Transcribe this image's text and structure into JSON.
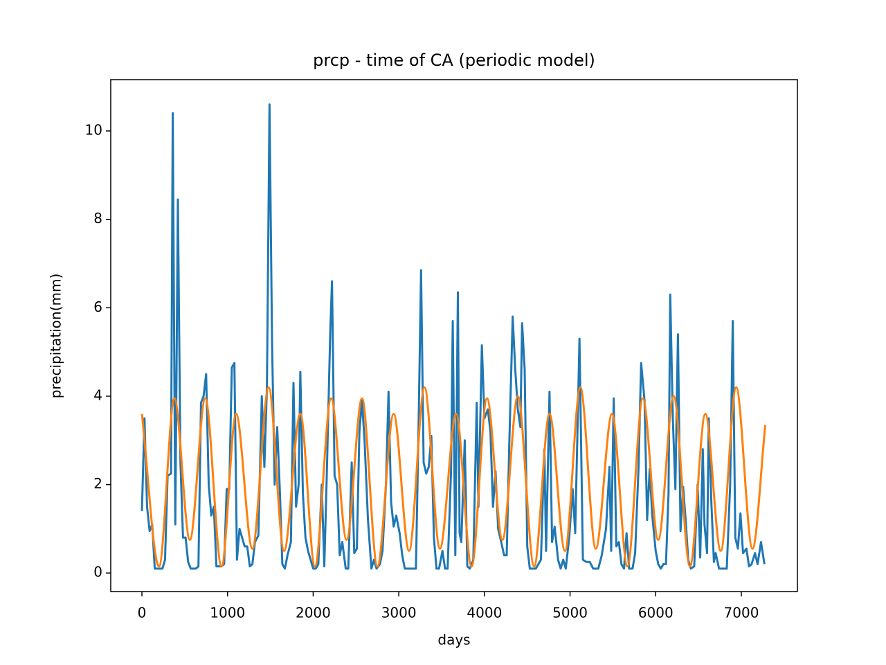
{
  "chart_data": {
    "type": "line",
    "title": "prcp - time of CA (periodic model)",
    "x_label": "days",
    "y_label": "precipitation(mm)",
    "xlim": [
      -364,
      7655
    ],
    "ylim": [
      -0.42,
      11.16
    ],
    "xticks": [
      0,
      1000,
      2000,
      3000,
      4000,
      5000,
      6000,
      7000
    ],
    "yticks": [
      0,
      2,
      4,
      6,
      8,
      10
    ],
    "grid": false,
    "series": [
      {
        "color": "#1f77b4",
        "smooth": false,
        "x": [
          0,
          30,
          60,
          90,
          120,
          150,
          180,
          240,
          270,
          300,
          340,
          360,
          390,
          420,
          450,
          480,
          510,
          540,
          570,
          630,
          660,
          690,
          720,
          750,
          780,
          810,
          840,
          870,
          900,
          930,
          960,
          990,
          1020,
          1050,
          1080,
          1110,
          1140,
          1170,
          1200,
          1230,
          1260,
          1290,
          1320,
          1360,
          1400,
          1430,
          1460,
          1490,
          1520,
          1550,
          1580,
          1610,
          1640,
          1670,
          1700,
          1740,
          1770,
          1800,
          1830,
          1850,
          1880,
          1910,
          1940,
          1970,
          2000,
          2030,
          2060,
          2100,
          2130,
          2160,
          2200,
          2220,
          2250,
          2280,
          2310,
          2340,
          2380,
          2410,
          2450,
          2480,
          2510,
          2540,
          2570,
          2600,
          2640,
          2680,
          2710,
          2740,
          2780,
          2810,
          2850,
          2880,
          2910,
          2940,
          2970,
          3010,
          3040,
          3070,
          3100,
          3150,
          3200,
          3230,
          3260,
          3290,
          3320,
          3350,
          3380,
          3410,
          3440,
          3470,
          3510,
          3540,
          3570,
          3610,
          3630,
          3660,
          3690,
          3710,
          3730,
          3770,
          3800,
          3830,
          3870,
          3910,
          3930,
          3970,
          4000,
          4040,
          4070,
          4100,
          4130,
          4160,
          4190,
          4230,
          4260,
          4290,
          4330,
          4360,
          4390,
          4420,
          4440,
          4470,
          4500,
          4530,
          4600,
          4660,
          4700,
          4720,
          4760,
          4790,
          4820,
          4860,
          4890,
          4920,
          4950,
          4990,
          5030,
          5060,
          5090,
          5110,
          5150,
          5190,
          5230,
          5270,
          5330,
          5370,
          5420,
          5460,
          5480,
          5510,
          5540,
          5570,
          5600,
          5630,
          5660,
          5690,
          5730,
          5760,
          5800,
          5830,
          5870,
          5900,
          5930,
          5960,
          6000,
          6030,
          6060,
          6090,
          6120,
          6150,
          6170,
          6200,
          6230,
          6260,
          6290,
          6320,
          6350,
          6380,
          6410,
          6450,
          6490,
          6520,
          6550,
          6570,
          6600,
          6620,
          6650,
          6680,
          6700,
          6740,
          6790,
          6830,
          6870,
          6900,
          6930,
          6960,
          6990,
          7020,
          7060,
          7090,
          7120,
          7160,
          7190,
          7230,
          7270
        ],
        "values": [
          1.4,
          3.5,
          1.5,
          0.95,
          1.1,
          0.1,
          0.1,
          0.1,
          0.3,
          2.2,
          2.25,
          10.4,
          1.1,
          8.45,
          2.5,
          0.8,
          0.8,
          0.25,
          0.1,
          0.1,
          0.15,
          3.85,
          4.0,
          4.5,
          2.0,
          1.3,
          1.5,
          0.15,
          0.15,
          0.15,
          0.2,
          1.9,
          1.9,
          4.65,
          4.75,
          0.3,
          1.0,
          0.8,
          0.6,
          0.6,
          0.15,
          0.2,
          0.7,
          0.85,
          4.0,
          2.4,
          4.2,
          10.6,
          5.2,
          2.0,
          3.3,
          1.9,
          0.2,
          0.1,
          0.4,
          0.7,
          4.3,
          1.5,
          2.0,
          4.55,
          1.8,
          0.8,
          0.5,
          0.3,
          0.1,
          0.1,
          0.2,
          2.0,
          0.15,
          2.3,
          5.5,
          6.6,
          2.2,
          2.0,
          0.4,
          0.7,
          0.1,
          0.1,
          2.5,
          0.45,
          0.55,
          3.2,
          3.9,
          3.0,
          1.2,
          0.1,
          0.3,
          0.1,
          0.2,
          0.5,
          2.0,
          4.1,
          1.6,
          1.05,
          1.3,
          0.9,
          0.4,
          0.1,
          0.1,
          0.1,
          0.1,
          3.2,
          6.85,
          2.5,
          2.25,
          2.4,
          3.1,
          0.8,
          0.1,
          0.1,
          0.5,
          0.1,
          0.1,
          2.3,
          5.7,
          0.4,
          6.35,
          0.9,
          0.7,
          3.0,
          0.15,
          0.1,
          0.3,
          3.85,
          1.5,
          5.15,
          3.5,
          3.7,
          3.2,
          1.5,
          2.3,
          1.0,
          0.75,
          0.4,
          0.4,
          2.9,
          5.8,
          4.6,
          3.7,
          3.3,
          5.65,
          4.6,
          0.6,
          0.1,
          0.1,
          0.3,
          2.8,
          0.5,
          4.1,
          0.7,
          1.05,
          0.3,
          0.1,
          0.3,
          0.1,
          0.8,
          1.9,
          0.9,
          3.5,
          5.3,
          0.3,
          0.25,
          0.25,
          0.1,
          0.1,
          0.4,
          1.0,
          2.4,
          0.5,
          3.95,
          0.6,
          0.7,
          0.2,
          0.1,
          0.9,
          0.1,
          0.1,
          0.45,
          2.4,
          4.75,
          3.9,
          1.2,
          2.35,
          1.3,
          0.5,
          0.2,
          0.1,
          0.2,
          0.2,
          1.8,
          6.3,
          3.5,
          1.9,
          5.4,
          0.95,
          1.95,
          1.2,
          0.3,
          0.1,
          0.15,
          2.0,
          0.35,
          2.8,
          1.1,
          0.45,
          3.5,
          1.6,
          0.25,
          0.45,
          0.1,
          0.1,
          0.1,
          2.0,
          5.7,
          0.8,
          0.55,
          1.35,
          0.45,
          0.55,
          0.15,
          0.2,
          0.45,
          0.2,
          0.7,
          0.2
        ]
      },
      {
        "color": "#ff7f0e",
        "smooth": true,
        "x": [
          0,
          200,
          380,
          560,
          740,
          930,
          1100,
          1290,
          1480,
          1660,
          1850,
          2020,
          2210,
          2390,
          2570,
          2750,
          2940,
          3120,
          3300,
          3480,
          3670,
          3850,
          4030,
          4210,
          4390,
          4580,
          4760,
          4940,
          5120,
          5300,
          5490,
          5670,
          5850,
          6030,
          6210,
          6400,
          6580,
          6760,
          6940,
          7130,
          7280
        ],
        "values": [
          3.6,
          0.15,
          3.95,
          0.75,
          3.95,
          0.15,
          3.6,
          0.55,
          4.2,
          0.5,
          3.6,
          0.15,
          3.95,
          0.75,
          3.95,
          0.15,
          3.6,
          0.5,
          4.2,
          0.55,
          3.6,
          0.15,
          3.95,
          0.75,
          4.0,
          0.15,
          3.6,
          0.5,
          4.2,
          0.55,
          3.6,
          0.15,
          3.95,
          0.75,
          4.0,
          0.15,
          3.6,
          0.5,
          4.2,
          0.55,
          3.35
        ]
      }
    ]
  }
}
